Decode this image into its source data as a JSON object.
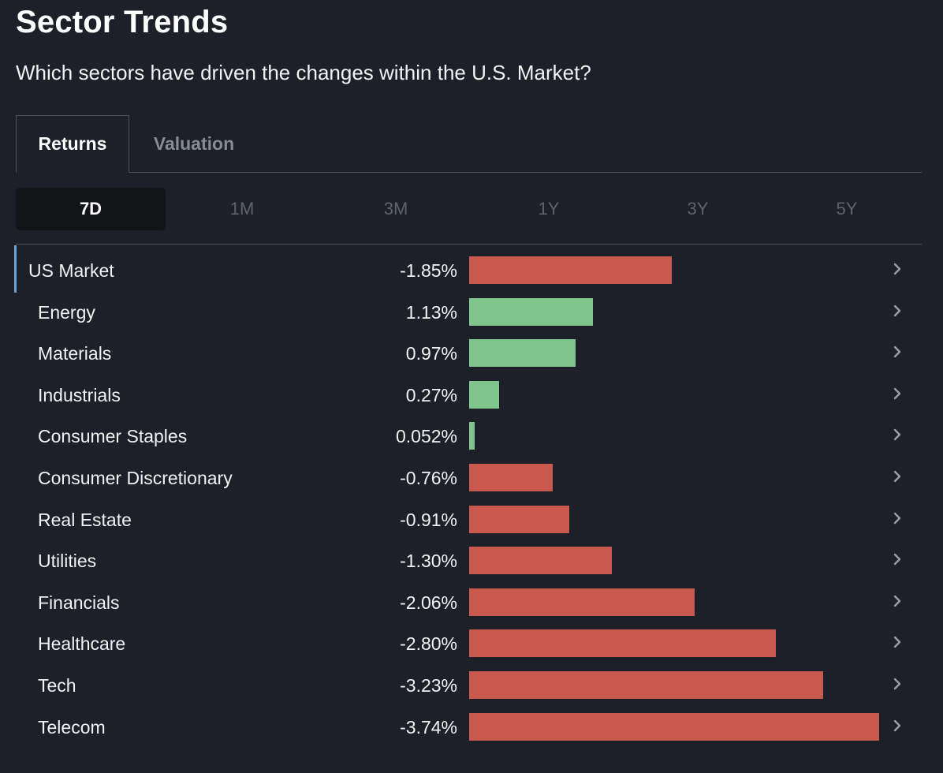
{
  "header": {
    "title": "Sector Trends",
    "subtitle": "Which sectors have driven the changes within the U.S. Market?"
  },
  "tabs": [
    {
      "label": "Returns",
      "active": true
    },
    {
      "label": "Valuation",
      "active": false
    }
  ],
  "periods": [
    {
      "label": "7D",
      "active": true
    },
    {
      "label": "1M",
      "active": false
    },
    {
      "label": "3M",
      "active": false
    },
    {
      "label": "1Y",
      "active": false
    },
    {
      "label": "3Y",
      "active": false
    },
    {
      "label": "5Y",
      "active": false
    }
  ],
  "colors": {
    "positive": "#7fc58c",
    "negative": "#c9584d",
    "selected_marker": "#63a4d9",
    "background": "#1d2029"
  },
  "icons": {
    "row_action": "chevron-right-icon"
  },
  "chart_data": {
    "type": "bar",
    "orientation": "horizontal",
    "categories": [
      "US Market",
      "Energy",
      "Materials",
      "Industrials",
      "Consumer Staples",
      "Consumer Discretionary",
      "Real Estate",
      "Utilities",
      "Financials",
      "Healthcare",
      "Tech",
      "Telecom"
    ],
    "values": [
      -1.85,
      1.13,
      0.97,
      0.27,
      0.052,
      -0.76,
      -0.91,
      -1.3,
      -2.06,
      -2.8,
      -3.23,
      -3.74
    ],
    "value_labels": [
      "-1.85%",
      "1.13%",
      "0.97%",
      "0.27%",
      "0.052%",
      "-0.76%",
      "-0.91%",
      "-1.30%",
      "-2.06%",
      "-2.80%",
      "-3.23%",
      "-3.74%"
    ],
    "unit": "%",
    "bar_length_encodes": "absolute value",
    "bar_color_encodes": "sign",
    "selected_row": "US Market",
    "grid": false,
    "legend": "none"
  }
}
